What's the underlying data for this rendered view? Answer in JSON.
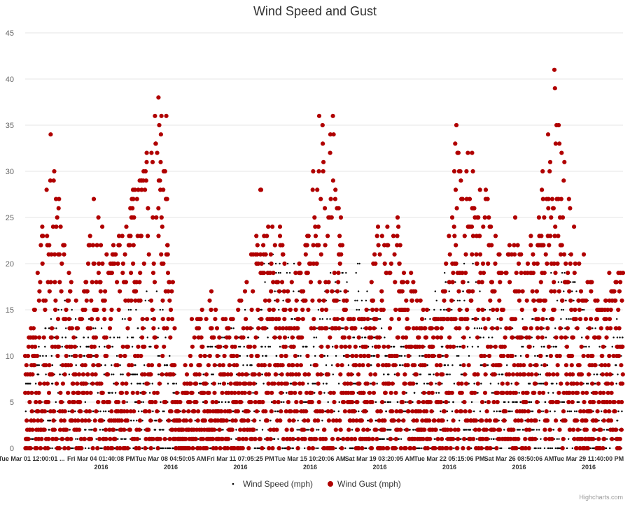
{
  "chart_data": {
    "type": "scatter",
    "title": "Wind Speed and Gust",
    "xlabel": "",
    "ylabel": "",
    "ylim": [
      0,
      45
    ],
    "y_ticks": [
      0,
      5,
      10,
      15,
      20,
      25,
      30,
      35,
      40,
      45
    ],
    "grid": "horizontal",
    "legend_position": "bottom-center",
    "x_ticks": [
      {
        "label": "Tue Mar 01 12:00:01 ...",
        "year": ""
      },
      {
        "label": "Fri Mar 04 01:40:08 PM",
        "year": "2016"
      },
      {
        "label": "Tue Mar 08 04:50:05 AM",
        "year": "2016"
      },
      {
        "label": "Fri Mar 11 07:05:25 PM",
        "year": "2016"
      },
      {
        "label": "Tue Mar 15 10:20:06 AM",
        "year": "2016"
      },
      {
        "label": "Sat Mar 19 03:20:05 AM",
        "year": "2016"
      },
      {
        "label": "Tue Mar 22 05:15:06 PM",
        "year": "2016"
      },
      {
        "label": "Sat Mar 26 08:50:06 AM",
        "year": "2016"
      },
      {
        "label": "Tue Mar 29 11:40:00 PM",
        "year": "2016"
      }
    ],
    "x_range_days": [
      0,
      30.5
    ],
    "series": [
      {
        "name": "Wind Speed (mph)",
        "color": "#000000",
        "marker": "dot",
        "envelope_days": [
          0,
          1.2,
          2.0,
          3.5,
          4.5,
          6.0,
          6.8,
          8.0,
          9.5,
          10.5,
          11.5,
          12.5,
          13.8,
          14.5,
          15.5,
          17.0,
          18.5,
          20.0,
          21.0,
          22.5,
          24.0,
          25.0,
          26.5,
          27.5,
          29.0,
          30.5
        ],
        "envelope_max": [
          8,
          14,
          16,
          14,
          14,
          18,
          18,
          4,
          12,
          14,
          16,
          22,
          20,
          12,
          20,
          20,
          12,
          12,
          18,
          22,
          14,
          14,
          18,
          22,
          14,
          14
        ]
      },
      {
        "name": "Wind Gust (mph)",
        "color": "#b00000",
        "marker": "circle",
        "envelope_days": [
          0,
          0.8,
          1.3,
          2.0,
          2.8,
          3.5,
          4.5,
          5.5,
          6.2,
          6.8,
          7.2,
          7.8,
          8.5,
          9.5,
          10.5,
          11.3,
          12.0,
          13.0,
          13.6,
          14.3,
          15.0,
          15.7,
          16.5,
          17.3,
          18.0,
          19.0,
          19.8,
          20.5,
          21.2,
          22.0,
          22.8,
          23.5,
          24.2,
          25.0,
          25.8,
          26.4,
          27.0,
          27.8,
          28.5,
          29.2,
          29.8,
          30.5
        ],
        "envelope_max": [
          10,
          22,
          34,
          22,
          14,
          27,
          22,
          28,
          32,
          38,
          36,
          4,
          14,
          17,
          14,
          18,
          28,
          24,
          18,
          22,
          36,
          36,
          14,
          14,
          24,
          25,
          18,
          15,
          14,
          35,
          32,
          28,
          21,
          25,
          23,
          30,
          41,
          26,
          21,
          16,
          19,
          19
        ]
      }
    ]
  },
  "credits": "Highcharts.com"
}
